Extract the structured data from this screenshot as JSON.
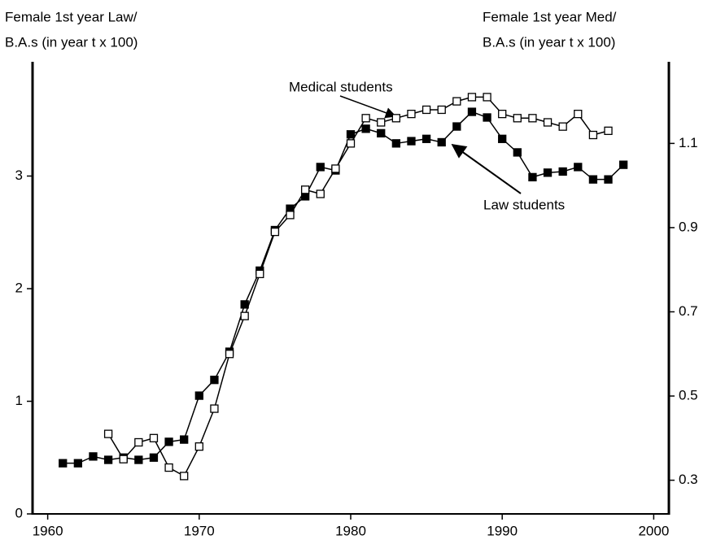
{
  "chart_data": {
    "type": "line",
    "y_label_lines": [
      "Female 1st year Law/",
      "B.A.s (in year t x 100)"
    ],
    "y2_label_lines": [
      "Female 1st year Med/",
      "B.A.s (in year t x 100)"
    ],
    "xlim": [
      1959,
      2001
    ],
    "xticks": [
      1960,
      1970,
      1980,
      1990,
      2000
    ],
    "ylim": [
      0,
      4
    ],
    "yticks": [
      0,
      1,
      2,
      3
    ],
    "y2lim": [
      0.22,
      1.29
    ],
    "y2ticks": [
      0.3,
      0.5,
      0.7,
      0.9,
      1.1
    ],
    "series": [
      {
        "name": "Law students",
        "color": "#000000",
        "marker": "filled",
        "x": [
          1961,
          1962,
          1963,
          1964,
          1965,
          1966,
          1967,
          1968,
          1969,
          1970,
          1971,
          1972,
          1973,
          1974,
          1975,
          1976,
          1977,
          1978,
          1979,
          1980,
          1981,
          1982,
          1983,
          1984,
          1985,
          1986,
          1987,
          1988,
          1989,
          1990,
          1991,
          1992,
          1993,
          1994,
          1995,
          1996,
          1997,
          1998
        ],
        "values": [
          0.45,
          0.45,
          0.51,
          0.48,
          0.5,
          0.48,
          0.5,
          0.64,
          0.66,
          1.05,
          1.19,
          1.44,
          1.86,
          2.16,
          2.52,
          2.71,
          2.82,
          3.08,
          3.05,
          3.37,
          3.42,
          3.38,
          3.29,
          3.31,
          3.33,
          3.3,
          3.44,
          3.57,
          3.52,
          3.33,
          3.21,
          2.99,
          3.03,
          3.04,
          3.08,
          2.97,
          2.97,
          3.1
        ]
      },
      {
        "name": "Medical students",
        "color": "#000000",
        "marker": "open",
        "axis": "y2",
        "x": [
          1964,
          1965,
          1966,
          1967,
          1968,
          1969,
          1970,
          1971,
          1972,
          1973,
          1974,
          1975,
          1976,
          1977,
          1978,
          1979,
          1980,
          1981,
          1982,
          1983,
          1984,
          1985,
          1986,
          1987,
          1988,
          1989,
          1990,
          1991,
          1992,
          1993,
          1994,
          1995,
          1996,
          1997
        ],
        "values": [
          0.41,
          0.35,
          0.39,
          0.4,
          0.33,
          0.31,
          0.38,
          0.47,
          0.6,
          0.69,
          0.79,
          0.89,
          0.93,
          0.99,
          0.98,
          1.04,
          1.1,
          1.16,
          1.15,
          1.16,
          1.17,
          1.18,
          1.18,
          1.2,
          1.21,
          1.21,
          1.17,
          1.16,
          1.16,
          1.15,
          1.14,
          1.17,
          1.12,
          1.13
        ]
      }
    ]
  }
}
